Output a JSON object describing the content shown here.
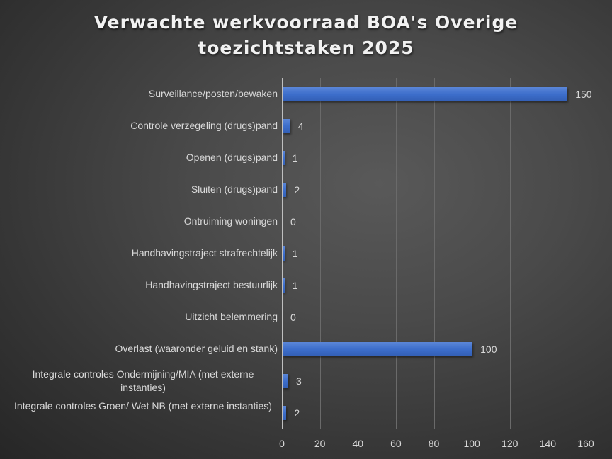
{
  "chart_data": {
    "type": "bar",
    "orientation": "horizontal",
    "title": "Verwachte werkvoorraad BOA's Overige toezichtstaken 2025",
    "title_lines": [
      "Verwachte werkvoorraad BOA's Overige",
      "toezichtstaken 2025"
    ],
    "xlabel": "",
    "ylabel": "",
    "categories": [
      "Surveillance/posten/bewaken",
      "Controle verzegeling (drugs)pand",
      "Openen (drugs)pand",
      "Sluiten (drugs)pand",
      "Ontruiming woningen",
      "Handhavingstraject strafrechtelijk",
      "Handhavingstraject bestuurlijk",
      "Uitzicht belemmering",
      "Overlast (waaronder geluid en stank)",
      "Integrale controles Ondermijning/MIA (met externe instanties)",
      "Integrale controles Groen/ Wet NB (met externe instanties)"
    ],
    "values": [
      150,
      4,
      1,
      2,
      0,
      1,
      1,
      0,
      100,
      3,
      2
    ],
    "value_labels": [
      "150",
      "4",
      "1",
      "2",
      "0",
      "1",
      "1",
      "0",
      "100",
      "3",
      "2"
    ],
    "xlim": [
      0,
      160
    ],
    "x_ticks": [
      "0",
      "20",
      "40",
      "60",
      "80",
      "100",
      "120",
      "140",
      "160"
    ],
    "grid": true,
    "legend": null,
    "bar_color": "#4472c4",
    "background_color": "#404040"
  }
}
